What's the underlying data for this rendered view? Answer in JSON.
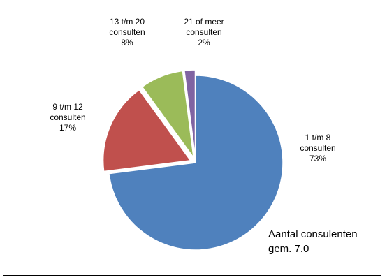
{
  "chart_data": {
    "type": "pie",
    "categories": [
      "1 t/m 8 consulten",
      "9 t/m 12 consulten",
      "13 t/m 20 consulten",
      "21 of meer consulten"
    ],
    "values": [
      73,
      17,
      8,
      2
    ],
    "value_labels": [
      "73%",
      "17%",
      "8%",
      "2%"
    ],
    "colors": [
      "#4f81bd",
      "#c0504d",
      "#9bbb59",
      "#8064a2"
    ],
    "annotations": [
      "Aantal consulenten",
      "gem. 7.0"
    ]
  }
}
